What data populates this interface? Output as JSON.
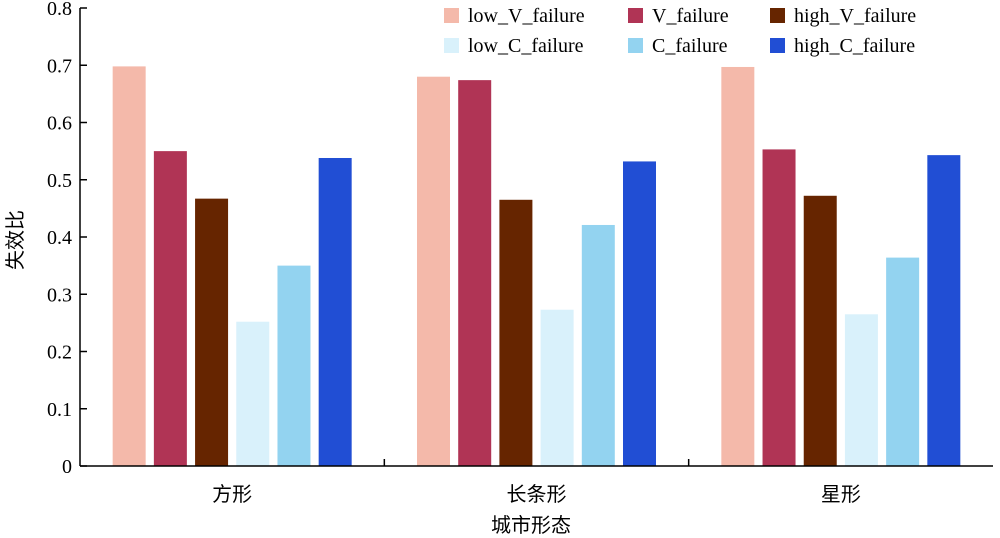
{
  "chart_data": {
    "type": "bar",
    "xlabel": "城市形态",
    "ylabel": "失效比",
    "ylim": [
      0,
      0.8
    ],
    "yticks": [
      "0",
      "0.1",
      "0.2",
      "0.3",
      "0.4",
      "0.5",
      "0.6",
      "0.7",
      "0.8"
    ],
    "categories": [
      "方形",
      "长条形",
      "星形"
    ],
    "series": [
      {
        "name": "low_V_failure",
        "color": "#f4b9aa",
        "values": [
          0.698,
          0.68,
          0.697
        ]
      },
      {
        "name": "V_failure",
        "color": "#b03455",
        "values": [
          0.55,
          0.674,
          0.553
        ]
      },
      {
        "name": "high_V_failure",
        "color": "#662500",
        "values": [
          0.467,
          0.465,
          0.472
        ]
      },
      {
        "name": "low_C_failure",
        "color": "#d9f1fb",
        "values": [
          0.252,
          0.273,
          0.265
        ]
      },
      {
        "name": "C_failure",
        "color": "#93d3f0",
        "values": [
          0.35,
          0.421,
          0.364
        ]
      },
      {
        "name": "high_C_failure",
        "color": "#214ed4",
        "values": [
          0.538,
          0.532,
          0.543
        ]
      }
    ],
    "legend_position": "top-right",
    "grid": false
  }
}
